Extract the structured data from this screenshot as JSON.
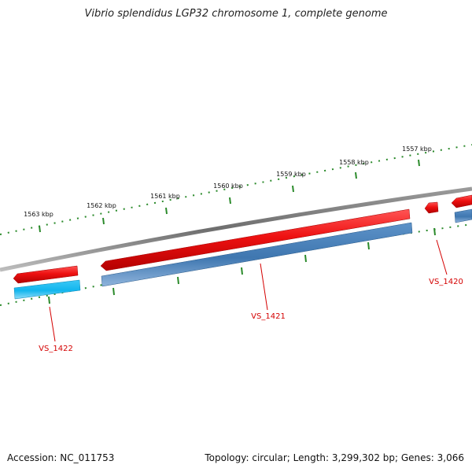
{
  "title": "Vibrio splendidus LGP32 chromosome 1, complete genome",
  "footer": {
    "accession": "Accession: NC_011753",
    "summary": "Topology: circular; Length: 3,299,302 bp; Genes: 3,066"
  },
  "ruler": {
    "ticks": [
      "1557 kbp",
      "1558 kbp",
      "1559 kbp",
      "1560 kbp",
      "1561 kbp",
      "1562 kbp",
      "1563 kbp"
    ]
  },
  "genes": [
    "VS_1420",
    "VS_1421",
    "VS_1422"
  ],
  "colors": {
    "backbone": "#7a7a7a",
    "cds_red": "#ee1111",
    "gene_blue": "#3f77b0",
    "gene_cyan": "#12b6ee",
    "tick_green": "#2a8a2a",
    "label_red": "#d40000"
  }
}
